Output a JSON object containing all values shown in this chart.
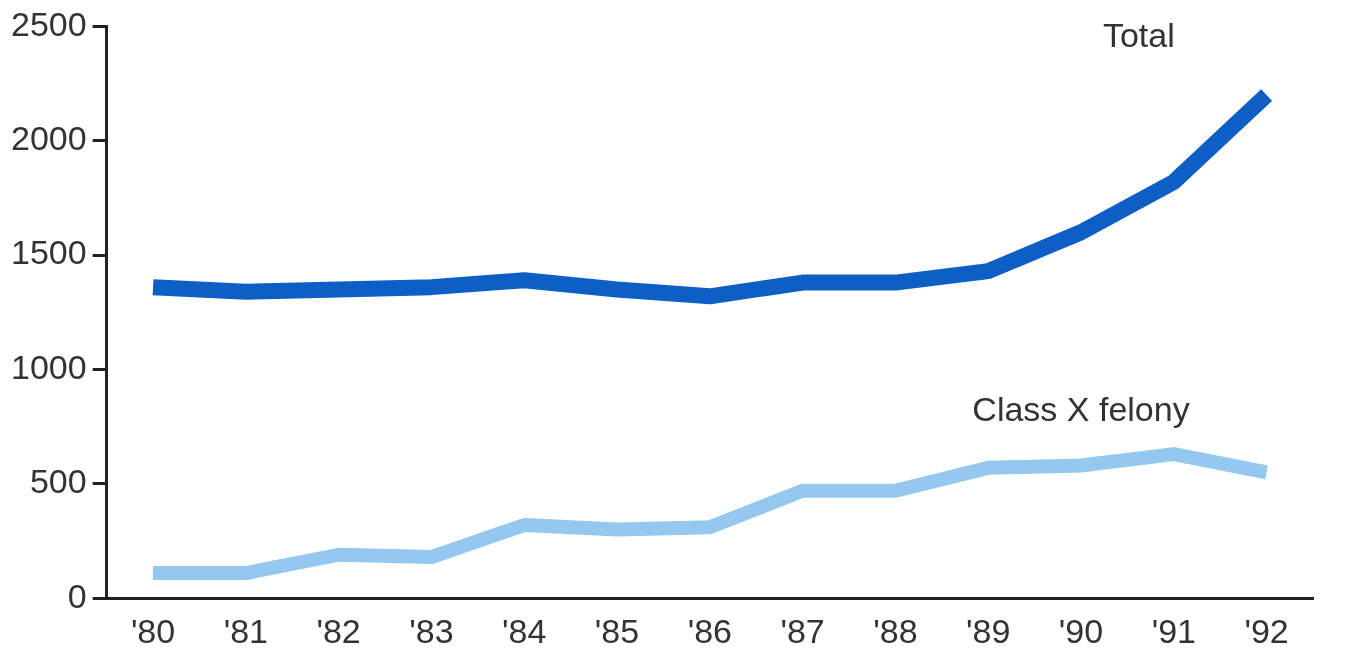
{
  "chart_data": {
    "type": "line",
    "categories": [
      "'80",
      "'81",
      "'82",
      "'83",
      "'84",
      "'85",
      "'86",
      "'87",
      "'88",
      "'89",
      "'90",
      "'91",
      "'92"
    ],
    "series": [
      {
        "name": "Total",
        "color": "#0d5fc6",
        "values": [
          1360,
          1340,
          1350,
          1360,
          1390,
          1350,
          1320,
          1380,
          1380,
          1430,
          1600,
          1820,
          2200
        ]
      },
      {
        "name": "Class X felony",
        "color": "#94c8ee",
        "values": [
          110,
          110,
          190,
          180,
          320,
          300,
          310,
          470,
          470,
          570,
          580,
          630,
          550
        ]
      }
    ],
    "ylim": [
      0,
      2500
    ],
    "yticks": [
      0,
      500,
      1000,
      1500,
      2000,
      2500
    ],
    "grid": false,
    "legend": false,
    "marker": "none",
    "line_style": "solid"
  }
}
